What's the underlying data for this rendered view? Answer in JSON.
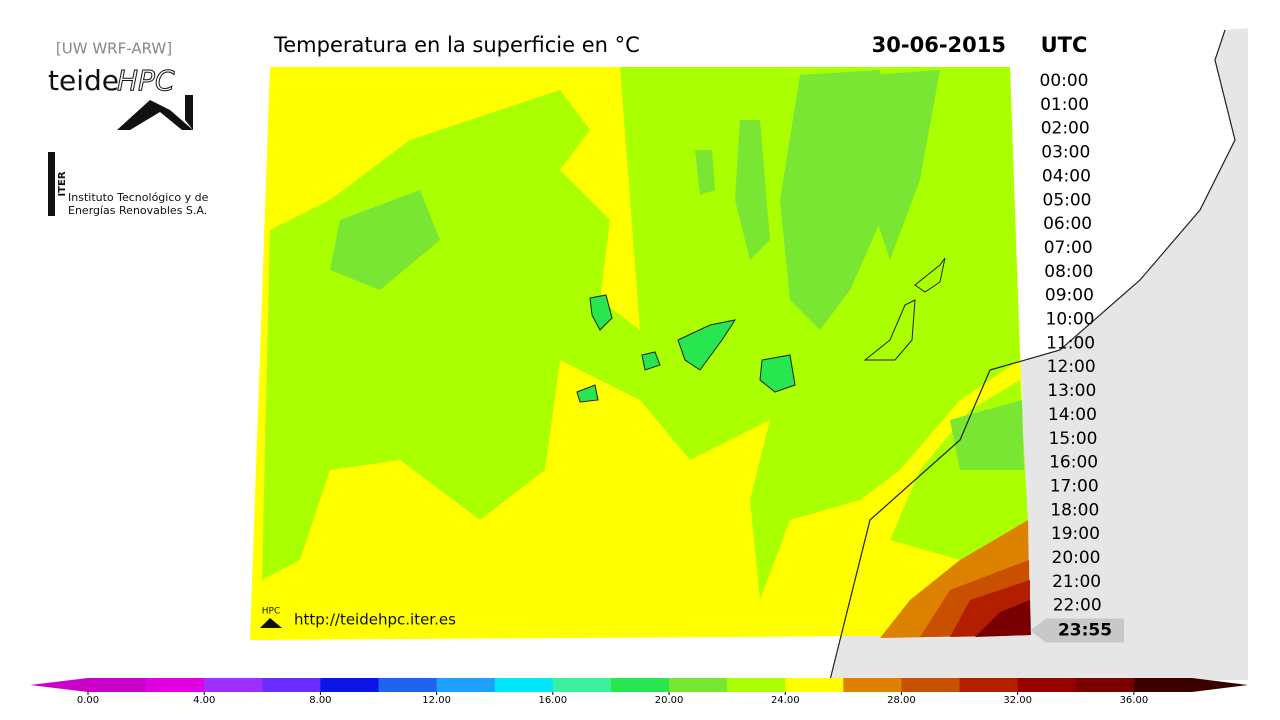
{
  "header": {
    "model": "[UW WRF-ARW]",
    "title": "Temperatura en la superficie en °C",
    "date": "30-06-2015",
    "timezone": "UTC"
  },
  "logo": {
    "name": "teide",
    "suffix": "HPC"
  },
  "iter": {
    "acronym": "ITER",
    "line1": "Instituto Tecnológico y de",
    "line2": "Energías Renovables S.A."
  },
  "footer": {
    "badge": "HPC",
    "url": "http://teidehpc.iter.es"
  },
  "timeline": {
    "times": [
      "00:00",
      "01:00",
      "02:00",
      "03:00",
      "04:00",
      "05:00",
      "06:00",
      "07:00",
      "08:00",
      "09:00",
      "10:00",
      "11:00",
      "12:00",
      "13:00",
      "14:00",
      "15:00",
      "16:00",
      "17:00",
      "18:00",
      "19:00",
      "20:00",
      "21:00",
      "22:00"
    ],
    "current": "23:55"
  },
  "colorbar": {
    "lim": [
      0,
      38
    ],
    "ticks": [
      {
        "value": 0,
        "label": "0.00"
      },
      {
        "value": 4,
        "label": "4.00"
      },
      {
        "value": 8,
        "label": "8.00"
      },
      {
        "value": 12,
        "label": "12.00"
      },
      {
        "value": 16,
        "label": "16.00"
      },
      {
        "value": 20,
        "label": "20.00"
      },
      {
        "value": 24,
        "label": "24.00"
      },
      {
        "value": 28,
        "label": "28.00"
      },
      {
        "value": 32,
        "label": "32.00"
      },
      {
        "value": 36,
        "label": "36.00"
      }
    ],
    "colors": [
      "#c800c8",
      "#e100e1",
      "#9b30ff",
      "#6a2cff",
      "#0a14e6",
      "#1e64f0",
      "#1ea0ff",
      "#00e6ff",
      "#3cf0a0",
      "#28e650",
      "#78e632",
      "#aaff00",
      "#ffff00",
      "#dc8200",
      "#c85000",
      "#b41e00",
      "#960000",
      "#780000",
      "#3c0000"
    ],
    "under_color": "#c800c8",
    "over_color": "#3c0000"
  }
}
